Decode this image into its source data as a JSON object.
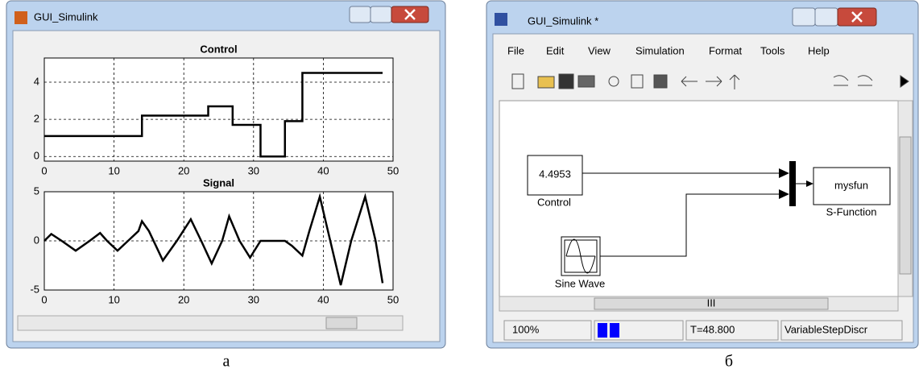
{
  "chart_data": [
    {
      "type": "line",
      "title": "Control",
      "color": "#000000",
      "grid": true,
      "x": [
        0,
        14,
        14,
        23.5,
        23.5,
        27,
        27,
        31,
        31,
        34.5,
        34.5,
        37,
        37,
        48.5
      ],
      "values": [
        1.1,
        1.1,
        2.2,
        2.2,
        2.7,
        2.7,
        1.7,
        1.7,
        0,
        0,
        1.9,
        1.9,
        4.5,
        4.5
      ],
      "xlim": [
        0,
        50
      ],
      "xticks": [
        0,
        10,
        20,
        30,
        40,
        50
      ],
      "ylim": [
        -0.25,
        5.3
      ],
      "yticks": [
        0,
        2,
        4
      ]
    },
    {
      "type": "line",
      "title": "Signal",
      "color": "#000000",
      "grid": true,
      "x": [
        0,
        1,
        2.5,
        4.5,
        6.5,
        8,
        9,
        10.5,
        12,
        13.5,
        14,
        15,
        17,
        19,
        21,
        22.5,
        24,
        25.5,
        26.5,
        28,
        29.5,
        31,
        32,
        34.5,
        35.5,
        37,
        38,
        39.5,
        41,
        42.5,
        44,
        46,
        47.5,
        48.5
      ],
      "values": [
        0,
        0.7,
        0,
        -1,
        0,
        0.8,
        0,
        -1,
        0,
        1,
        2,
        1,
        -2,
        0,
        2.2,
        0,
        -2.3,
        0,
        2.5,
        0,
        -1.7,
        0,
        0,
        0,
        -0.5,
        -1.5,
        1,
        4.5,
        0,
        -4.5,
        0,
        4.5,
        0,
        -4.3
      ],
      "xlim": [
        0,
        50
      ],
      "xticks": [
        0,
        10,
        20,
        30,
        40,
        50
      ],
      "ylim": [
        -5,
        5
      ],
      "yticks": [
        -5,
        0,
        5
      ]
    }
  ],
  "windows": [
    {
      "title": "GUI_Simulink"
    },
    {
      "title": "GUI_Simulink *",
      "menu": [
        "File",
        "Edit",
        "View",
        "Simulation",
        "Format",
        "Tools",
        "Help"
      ],
      "blocks": [
        {
          "label": "4.4953",
          "caption": "Control"
        },
        {
          "label": "mysfun",
          "caption": "S-Function"
        },
        {
          "caption": "Sine Wave"
        }
      ],
      "scroll_label": "III",
      "status": [
        "100%",
        "T=48.800",
        "VariableStepDiscr"
      ]
    }
  ],
  "captions": [
    "а",
    "б"
  ]
}
